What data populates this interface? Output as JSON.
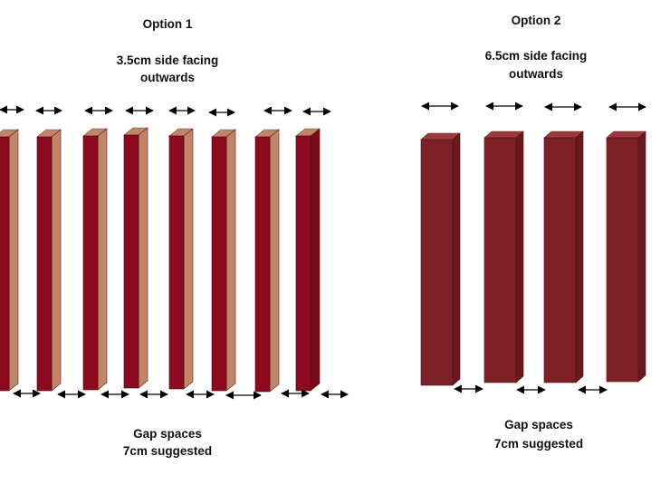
{
  "option1": {
    "title": "Option 1",
    "desc_line1": "3.5cm side facing",
    "desc_line2": "outwards",
    "gap_line1": "Gap spaces",
    "gap_line2": "7cm suggested"
  },
  "option2": {
    "title": "Option 2",
    "desc_line1": "6.5cm side facing",
    "desc_line2": "outwards",
    "gap_line1": "Gap spaces",
    "gap_line2": "7cm suggested"
  },
  "colors": {
    "slat_front": "#8b0a1f",
    "slat_side_light": "#c1856a",
    "slat_side_dark": "#7a0a1a",
    "slat_wide_front": "#7d1f27",
    "slat_wide_top": "#9c3a3f",
    "slat_wide_side": "#6a1820",
    "arrow": "#000000"
  }
}
